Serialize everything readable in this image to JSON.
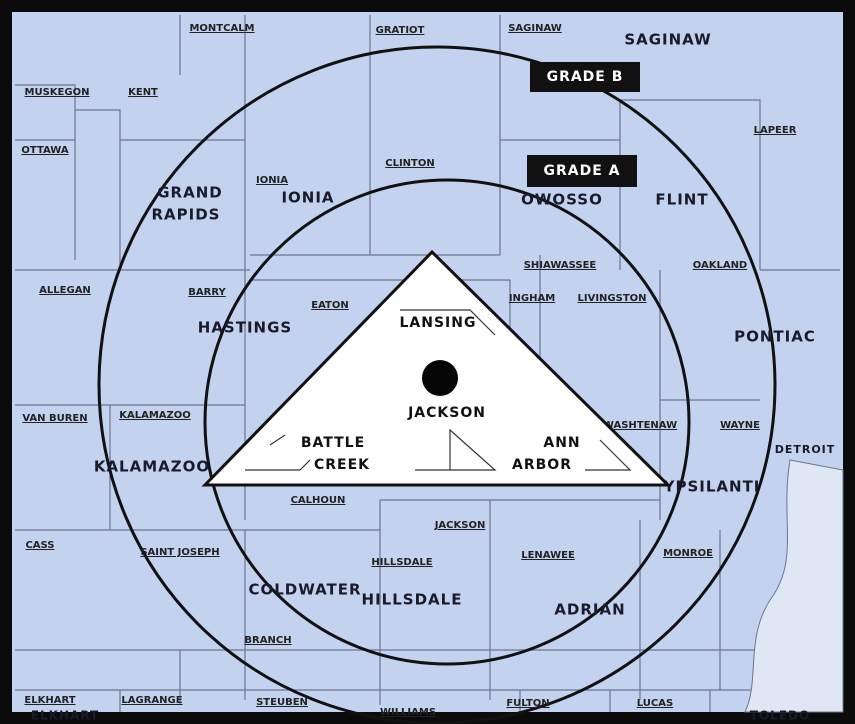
{
  "grade_labels": [
    "GRADE B",
    "GRADE A"
  ],
  "counties": [
    "MONTCALM",
    "GRATIOT",
    "SAGINAW",
    "MUSKEGON",
    "KENT",
    "OTTAWA",
    "IONIA",
    "CLINTON",
    "SHIAWASSEE",
    "LAPEER",
    "OAKLAND",
    "ALLEGAN",
    "BARRY",
    "EATON",
    "INGHAM",
    "LIVINGSTON",
    "VAN BUREN",
    "KALAMAZOO",
    "CALHOUN",
    "JACKSON",
    "WASHTENAW",
    "WAYNE",
    "CASS",
    "SAINT JOSEPH",
    "BRANCH",
    "HILLSDALE",
    "LENAWEE",
    "MONROE",
    "ELKHART",
    "LAGRANGE",
    "STEUBEN",
    "WILLIAMS",
    "FULTON",
    "LUCAS"
  ],
  "cities": [
    "SAGINAW",
    [
      "GRAND",
      "RAPIDS"
    ],
    "IONIA",
    "OWOSSO",
    "FLINT",
    "HASTINGS",
    "PONTIAC",
    "DETROIT",
    "KALAMAZOO",
    "YPSILANTI",
    "COLDWATER",
    "HILLSDALE",
    "ADRIAN",
    "ELKHART",
    "TOLEDO"
  ],
  "triangle_cities": [
    "LANSING",
    "JACKSON",
    [
      "BATTLE",
      "CREEK"
    ],
    [
      "ANN",
      "ARBOR"
    ]
  ]
}
